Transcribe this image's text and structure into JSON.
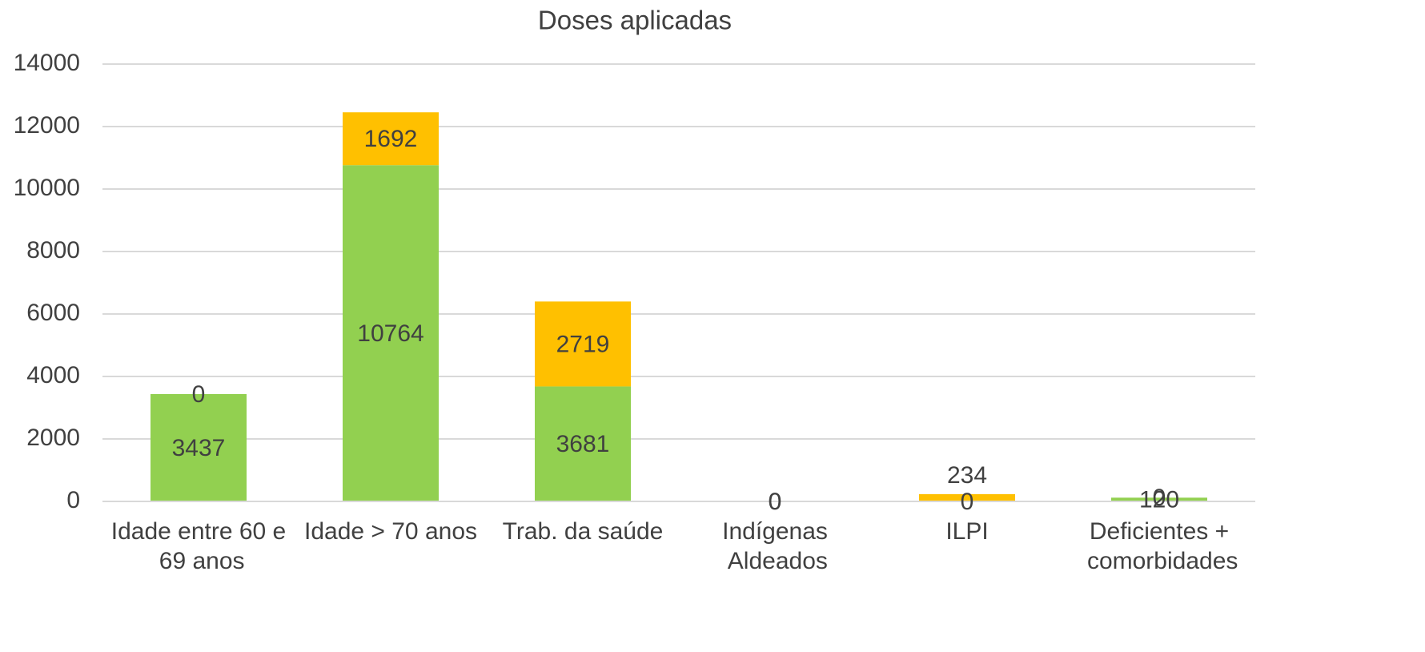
{
  "chart_data": {
    "type": "stacked_bar",
    "title": "Doses aplicadas",
    "categories": [
      "Idade entre 60 e 69 anos",
      "Idade > 70 anos",
      "Trab. da saúde",
      "Indígenas Aldeados",
      "ILPI",
      "Deficientes + comorbidades"
    ],
    "series": [
      {
        "color": "#92d050",
        "values": [
          3437,
          10764,
          3681,
          0,
          0,
          120
        ]
      },
      {
        "color": "#ffc000",
        "values": [
          0,
          1692,
          2719,
          0,
          234,
          0
        ]
      }
    ],
    "ylim": [
      0,
      14000
    ],
    "yticks": [
      0,
      2000,
      4000,
      6000,
      8000,
      10000,
      12000,
      14000
    ],
    "grid": true
  }
}
